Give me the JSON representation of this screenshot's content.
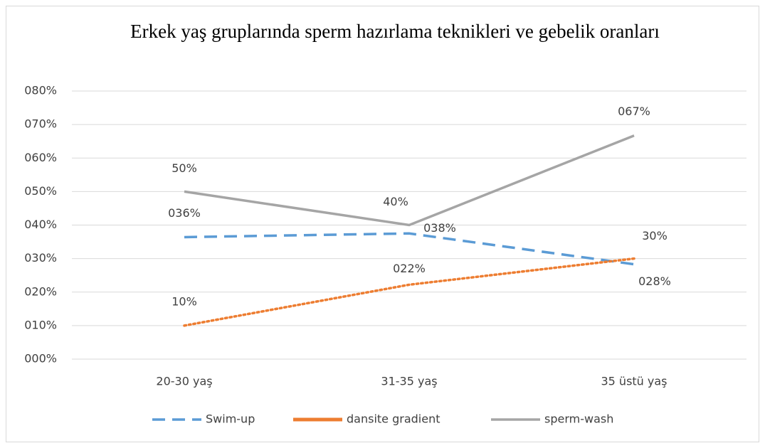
{
  "chart_data": {
    "type": "line",
    "title": "Erkek yaş gruplarında sperm hazırlama teknikleri ve gebelik oranları",
    "categories": [
      "20-30 yaş",
      "31-35 yaş",
      "35 üstü yaş"
    ],
    "series": [
      {
        "name": "Swim-up",
        "color": "#5b9bd5",
        "dash": "dashed",
        "values": [
          36.4,
          37.5,
          28.3
        ],
        "value_labels": [
          "036%",
          "038%",
          "028%"
        ]
      },
      {
        "name": "dansite gradient",
        "color": "#ed7d31",
        "dash": "dotted",
        "values": [
          10,
          22.2,
          30
        ],
        "value_labels": [
          "10%",
          "022%",
          "30%"
        ]
      },
      {
        "name": "sperm-wash",
        "color": "#a5a5a5",
        "dash": "solid",
        "values": [
          50,
          40,
          66.7
        ],
        "value_labels": [
          "50%",
          "40%",
          "067%"
        ]
      }
    ],
    "ylim": [
      0,
      80
    ],
    "yticks": [
      {
        "value": 0,
        "label": "000%"
      },
      {
        "value": 10,
        "label": "010%"
      },
      {
        "value": 20,
        "label": "020%"
      },
      {
        "value": 30,
        "label": "030%"
      },
      {
        "value": 40,
        "label": "040%"
      },
      {
        "value": 50,
        "label": "050%"
      },
      {
        "value": 60,
        "label": "060%"
      },
      {
        "value": 70,
        "label": "070%"
      },
      {
        "value": 80,
        "label": "080%"
      }
    ],
    "grid": true,
    "legend": "bottom"
  }
}
